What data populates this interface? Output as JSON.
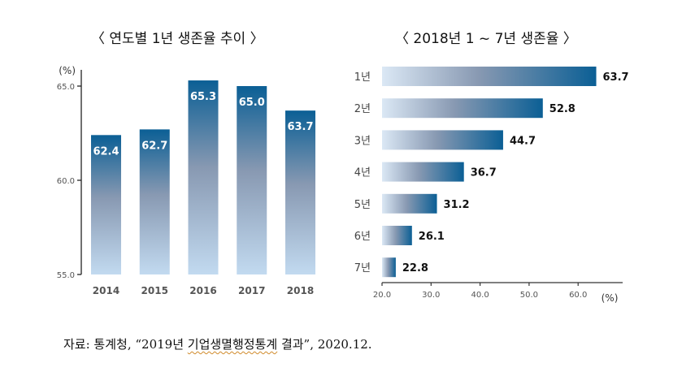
{
  "titles": {
    "left": "〈 연도별 1년 생존율 추이 〉",
    "right": "〈 2018년 1 ~ 7년 생존율 〉"
  },
  "source": {
    "prefix": "자료: 통계청, “2019년 ",
    "underlined": "기업생멸행정통계",
    "suffix": " 결과”, 2020.12."
  },
  "colors": {
    "bar_dark": "#0b5f95",
    "bar_mid": "#8899b2",
    "bar_light": "#c2daf0",
    "label_on_bar": "#ffffff",
    "label_text": "#111111",
    "tick_text": "#555555"
  },
  "chart_data": [
    {
      "type": "bar",
      "orientation": "vertical",
      "title": "〈 연도별 1년 생존율 추이 〉",
      "categories": [
        "2014",
        "2015",
        "2016",
        "2017",
        "2018"
      ],
      "values": [
        62.4,
        62.7,
        65.3,
        65.0,
        63.7
      ],
      "data_labels": [
        "62.4",
        "62.7",
        "65.3",
        "65.0",
        "63.7"
      ],
      "ylabel": "(%)",
      "ylim": [
        55.0,
        65.0
      ],
      "yticks": [
        "55.0",
        "60.0",
        "65.0"
      ],
      "ytick_values": [
        55,
        60,
        65
      ],
      "grid": false,
      "legend": "none"
    },
    {
      "type": "bar",
      "orientation": "horizontal",
      "title": "〈 2018년 1 ~ 7년 생존율 〉",
      "categories": [
        "1년",
        "2년",
        "3년",
        "4년",
        "5년",
        "6년",
        "7년"
      ],
      "values": [
        63.7,
        52.8,
        44.7,
        36.7,
        31.2,
        26.1,
        22.8
      ],
      "data_labels": [
        "63.7",
        "52.8",
        "44.7",
        "36.7",
        "31.2",
        "26.1",
        "22.8"
      ],
      "xlabel": "(%)",
      "xlim": [
        20.0,
        68.0
      ],
      "xticks": [
        "20.0",
        "30.0",
        "40.0",
        "50.0",
        "60.0"
      ],
      "xtick_values": [
        20,
        30,
        40,
        50,
        60
      ],
      "grid": false,
      "legend": "none"
    }
  ]
}
